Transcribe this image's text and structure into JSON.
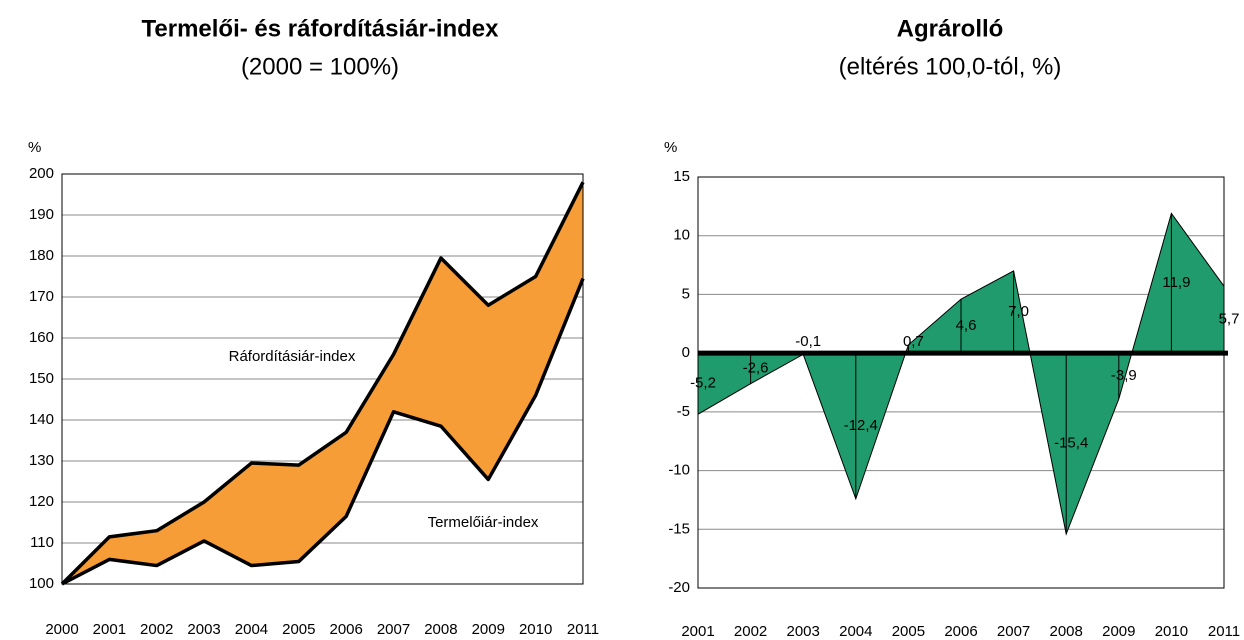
{
  "chart_data": [
    {
      "type": "band",
      "title": "Termelői- és ráfordításiár-index",
      "subtitle": "(2000 = 100%)",
      "y_label": "%",
      "categories": [
        "2000",
        "2001",
        "2002",
        "2003",
        "2004",
        "2005",
        "2006",
        "2007",
        "2008",
        "2009",
        "2010",
        "2011"
      ],
      "fill": "#f79d37",
      "series": [
        {
          "name": "Ráfordításiár-index",
          "color": "#000000",
          "values": [
            100,
            111.5,
            113,
            120,
            129.5,
            129,
            137,
            156,
            179.5,
            168,
            175,
            198
          ]
        },
        {
          "name": "Termelőiár-index",
          "color": "#000000",
          "values": [
            100,
            106,
            104.5,
            110.5,
            104.5,
            105.5,
            116.5,
            142,
            138.5,
            125.5,
            146,
            174.5
          ]
        }
      ],
      "ylim": [
        100,
        200
      ],
      "yticks": [
        100,
        110,
        120,
        130,
        140,
        150,
        160,
        170,
        180,
        190,
        200
      ],
      "grid": true
    },
    {
      "type": "area",
      "title": "Agrárolló",
      "subtitle": "(eltérés 100,0-tól, %)",
      "y_label": "%",
      "categories": [
        "2001",
        "2002",
        "2003",
        "2004",
        "2005",
        "2006",
        "2007",
        "2008",
        "2009",
        "2010",
        "2011"
      ],
      "color": "#1f9b6e",
      "values": [
        -5.2,
        -2.6,
        -0.1,
        -12.4,
        0.7,
        4.6,
        7.0,
        -15.4,
        -3.9,
        11.9,
        5.7
      ],
      "value_labels": [
        "-5,2",
        "-2,6",
        "-0,1",
        "-12,4",
        "0,7",
        "4,6",
        "7,0",
        "-15,4",
        "-3,9",
        "11,9",
        "5,7"
      ],
      "ylim": [
        -20,
        15
      ],
      "yticks": [
        -20,
        -15,
        -10,
        -5,
        0,
        5,
        10,
        15
      ],
      "grid": true
    }
  ]
}
